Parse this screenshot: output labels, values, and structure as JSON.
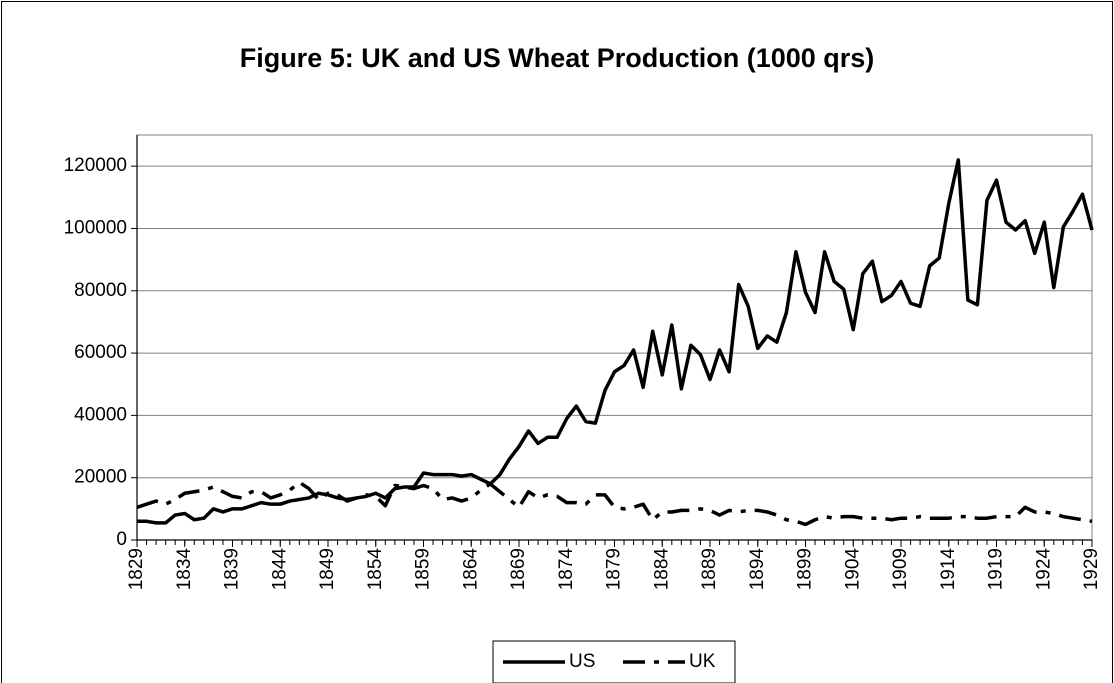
{
  "chart_data": {
    "type": "line",
    "title": "Figure 5: UK and US Wheat Production (1000 qrs)",
    "x": [
      1829,
      1830,
      1831,
      1832,
      1833,
      1834,
      1835,
      1836,
      1837,
      1838,
      1839,
      1840,
      1841,
      1842,
      1843,
      1844,
      1845,
      1846,
      1847,
      1848,
      1849,
      1850,
      1851,
      1852,
      1853,
      1854,
      1855,
      1856,
      1857,
      1858,
      1859,
      1860,
      1861,
      1862,
      1863,
      1864,
      1865,
      1866,
      1867,
      1868,
      1869,
      1870,
      1871,
      1872,
      1873,
      1874,
      1875,
      1876,
      1877,
      1878,
      1879,
      1880,
      1881,
      1882,
      1883,
      1884,
      1885,
      1886,
      1887,
      1888,
      1889,
      1890,
      1891,
      1892,
      1893,
      1894,
      1895,
      1896,
      1897,
      1898,
      1899,
      1900,
      1901,
      1902,
      1903,
      1904,
      1905,
      1906,
      1907,
      1908,
      1909,
      1910,
      1911,
      1912,
      1913,
      1914,
      1915,
      1916,
      1917,
      1918,
      1919,
      1920,
      1921,
      1922,
      1923,
      1924,
      1925,
      1926,
      1927,
      1928,
      1929
    ],
    "xlim": [
      1829,
      1929
    ],
    "xticks": [
      1829,
      1834,
      1839,
      1844,
      1849,
      1854,
      1859,
      1864,
      1869,
      1874,
      1879,
      1884,
      1889,
      1894,
      1899,
      1904,
      1909,
      1914,
      1919,
      1924,
      1929
    ],
    "ylim": [
      0,
      130000
    ],
    "yticks": [
      0,
      20000,
      40000,
      60000,
      80000,
      100000,
      120000
    ],
    "grid": true,
    "legend": "bottom",
    "series": [
      {
        "name": "US",
        "color": "#000000",
        "line_style": "solid",
        "values": [
          6000,
          6000,
          5500,
          5500,
          8000,
          8500,
          6500,
          7000,
          10000,
          9000,
          10000,
          10000,
          11000,
          12000,
          11500,
          11500,
          12500,
          13000,
          13500,
          15000,
          14500,
          13500,
          13000,
          13500,
          14000,
          15000,
          13500,
          16500,
          17000,
          17000,
          21500,
          21000,
          21000,
          21000,
          20500,
          21000,
          19500,
          18000,
          21000,
          26000,
          30000,
          35000,
          31000,
          33000,
          33000,
          39000,
          43000,
          38000,
          37500,
          48000,
          54000,
          56000,
          61000,
          49000,
          67000,
          53000,
          69000,
          48500,
          62500,
          59500,
          51500,
          61000,
          54000,
          82000,
          75000,
          61500,
          65500,
          63500,
          73000,
          92500,
          79500,
          73000,
          92500,
          83000,
          80500,
          67500,
          85500,
          89500,
          76500,
          78500,
          83000,
          76000,
          75000,
          88000,
          90500,
          108000,
          122000,
          77000,
          75500,
          109000,
          115500,
          102000,
          99500,
          102500,
          92000,
          102000,
          81000,
          100500,
          105500,
          111000,
          99500
        ]
      },
      {
        "name": "UK",
        "color": "#000000",
        "line_style": "dashed",
        "values": [
          10500,
          11500,
          12500,
          11500,
          13000,
          15000,
          15500,
          16000,
          17000,
          15500,
          14000,
          13500,
          15500,
          15500,
          13500,
          14500,
          16000,
          18500,
          16500,
          13000,
          15000,
          14500,
          12500,
          13500,
          14500,
          14000,
          11000,
          17500,
          17000,
          16500,
          17500,
          16500,
          13000,
          13500,
          12500,
          13500,
          16000,
          18000,
          15500,
          13000,
          10500,
          15500,
          13500,
          14500,
          14000,
          12000,
          12000,
          11500,
          14500,
          14500,
          10500,
          10000,
          10500,
          11500,
          6500,
          9000,
          9000,
          9500,
          9500,
          10000,
          9500,
          8000,
          9500,
          9000,
          9500,
          9500,
          9000,
          8000,
          6500,
          6000,
          5000,
          6500,
          7500,
          7000,
          7500,
          7500,
          7000,
          7000,
          7000,
          6500,
          7000,
          7000,
          7500,
          7000,
          7000,
          7000,
          7500,
          7500,
          7000,
          7000,
          7500,
          7500,
          7500,
          10500,
          9000,
          9000,
          8500,
          7500,
          7000,
          6500,
          6000
        ]
      }
    ]
  }
}
